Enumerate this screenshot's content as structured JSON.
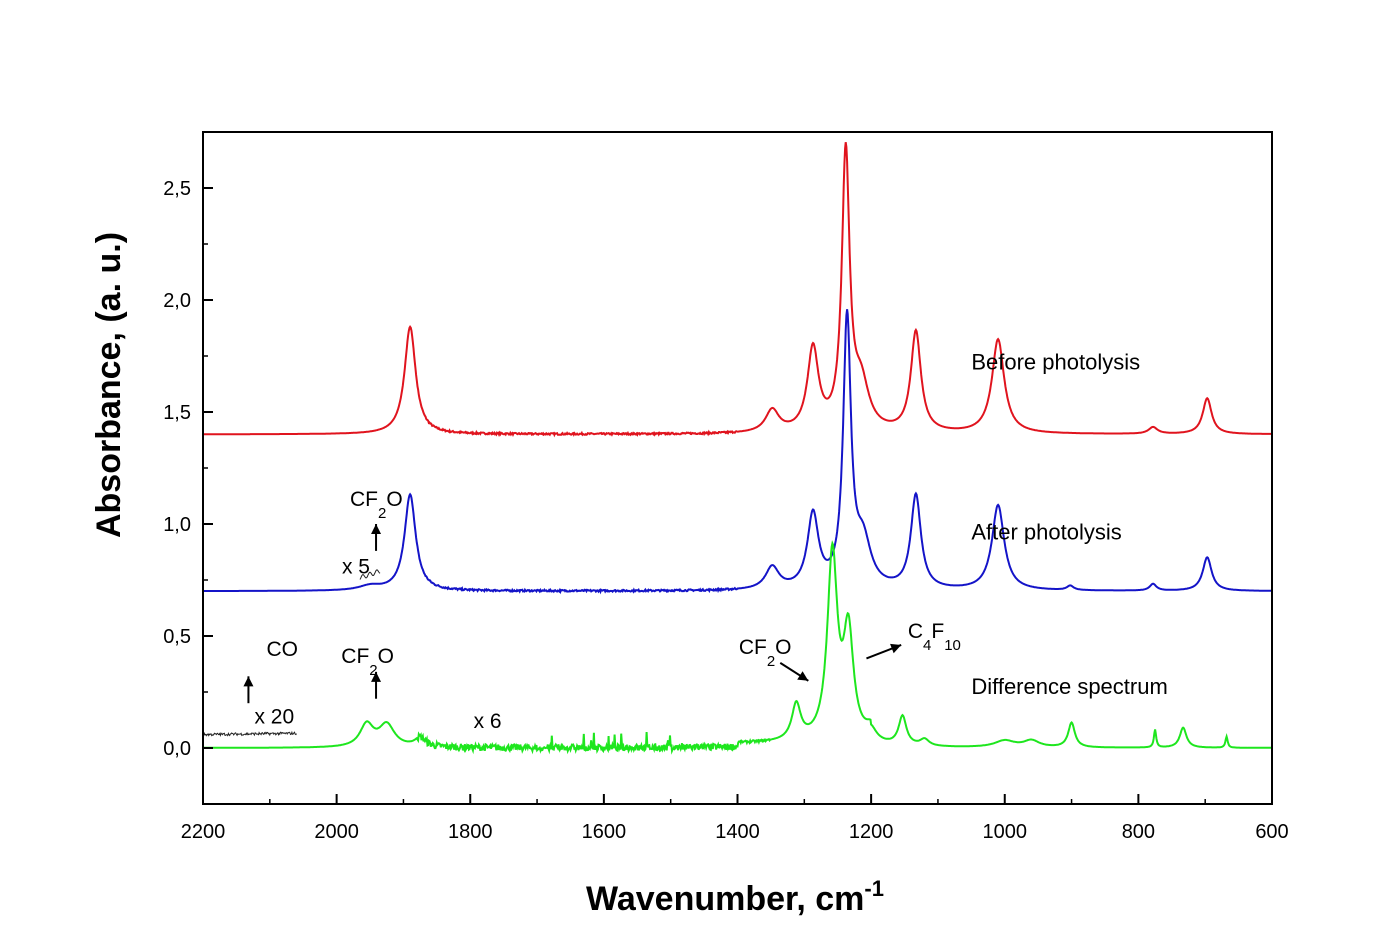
{
  "chart_data": {
    "type": "line",
    "xlabel": "Wavenumber, cm",
    "xlabel_sup": "-1",
    "ylabel": "Absorbance, (a. u.)",
    "xlim": [
      2200,
      600
    ],
    "ylim": [
      -0.25,
      2.75
    ],
    "x_reversed": true,
    "grid": false,
    "legend": "none",
    "xticks": [
      2200,
      2000,
      1800,
      1600,
      1400,
      1200,
      1000,
      800,
      600
    ],
    "xtick_labels": [
      "2200",
      "2000",
      "1800",
      "1600",
      "1400",
      "1200",
      "1000",
      "800",
      "600"
    ],
    "yticks": [
      0.0,
      0.5,
      1.0,
      1.5,
      2.0,
      2.5
    ],
    "ytick_labels": [
      "0,0",
      "0,5",
      "1,0",
      "1,5",
      "2,0",
      "2,5"
    ],
    "series": [
      {
        "name": "Before photolysis",
        "color": "#e0141e",
        "baseline": 1.4,
        "peaks": [
          {
            "x": 1890,
            "h": 0.48,
            "w": 10
          },
          {
            "x": 1348,
            "h": 0.1,
            "w": 12
          },
          {
            "x": 1287,
            "h": 0.37,
            "w": 10
          },
          {
            "x": 1238,
            "h": 1.23,
            "w": 7
          },
          {
            "x": 1215,
            "h": 0.2,
            "w": 14
          },
          {
            "x": 1133,
            "h": 0.45,
            "w": 9
          },
          {
            "x": 1010,
            "h": 0.42,
            "w": 11
          },
          {
            "x": 778,
            "h": 0.03,
            "w": 8
          },
          {
            "x": 697,
            "h": 0.16,
            "w": 8
          }
        ]
      },
      {
        "name": "After photolysis",
        "color": "#1414c8",
        "baseline": 0.7,
        "peaks": [
          {
            "x": 1950,
            "h": 0.02,
            "w": 20
          },
          {
            "x": 1890,
            "h": 0.43,
            "w": 10
          },
          {
            "x": 1348,
            "h": 0.1,
            "w": 12
          },
          {
            "x": 1287,
            "h": 0.33,
            "w": 10
          },
          {
            "x": 1236,
            "h": 1.19,
            "w": 7
          },
          {
            "x": 1212,
            "h": 0.2,
            "w": 14
          },
          {
            "x": 1133,
            "h": 0.42,
            "w": 9
          },
          {
            "x": 1010,
            "h": 0.38,
            "w": 11
          },
          {
            "x": 902,
            "h": 0.02,
            "w": 6
          },
          {
            "x": 778,
            "h": 0.03,
            "w": 6
          },
          {
            "x": 697,
            "h": 0.15,
            "w": 8
          }
        ]
      },
      {
        "name": "Difference spectrum",
        "color": "#1ee61e",
        "baseline": 0.0,
        "peaks": [
          {
            "x": 1955,
            "h": 0.1,
            "w": 12
          },
          {
            "x": 1925,
            "h": 0.1,
            "w": 14
          },
          {
            "x": 1875,
            "h": 0.04,
            "w": 10
          },
          {
            "x": 1312,
            "h": 0.16,
            "w": 8
          },
          {
            "x": 1258,
            "h": 0.83,
            "w": 9
          },
          {
            "x": 1234,
            "h": 0.47,
            "w": 9
          },
          {
            "x": 1200,
            "h": 0.05,
            "w": 10
          },
          {
            "x": 1153,
            "h": 0.13,
            "w": 7
          },
          {
            "x": 1120,
            "h": 0.03,
            "w": 8
          },
          {
            "x": 1000,
            "h": 0.03,
            "w": 18
          },
          {
            "x": 960,
            "h": 0.03,
            "w": 14
          },
          {
            "x": 900,
            "h": 0.11,
            "w": 6
          },
          {
            "x": 775,
            "h": 0.08,
            "w": 2
          },
          {
            "x": 733,
            "h": 0.09,
            "w": 6
          },
          {
            "x": 668,
            "h": 0.05,
            "w": 2
          }
        ]
      }
    ],
    "series_labels": [
      {
        "text": "Before photolysis",
        "x": 1050,
        "y": 1.69
      },
      {
        "text": "After photolysis",
        "x": 1050,
        "y": 0.93
      },
      {
        "text": "Difference spectrum",
        "x": 1050,
        "y": 0.24
      }
    ],
    "annotations": [
      {
        "id": "co",
        "text": "CO",
        "x": 2105,
        "y": 0.41
      },
      {
        "id": "x20",
        "text": "x 20",
        "x": 2123,
        "y": 0.11
      },
      {
        "id": "cf2o-diff",
        "text": "CF",
        "sub": "2",
        "tail": "O",
        "x": 1993,
        "y": 0.38
      },
      {
        "id": "x6",
        "text": "x 6",
        "x": 1795,
        "y": 0.09
      },
      {
        "id": "cf2o-after",
        "text": "CF",
        "sub": "2",
        "tail": "O",
        "x": 1980,
        "y": 1.08
      },
      {
        "id": "x5",
        "text": "x 5",
        "x": 1992,
        "y": 0.78
      },
      {
        "id": "cf2o-main",
        "text": "CF",
        "sub": "2",
        "tail": "O",
        "x": 1398,
        "y": 0.42
      },
      {
        "id": "c4f10",
        "text": "C",
        "sub": "4",
        "mid": "F",
        "sub2": "10",
        "x": 1145,
        "y": 0.49
      }
    ]
  }
}
